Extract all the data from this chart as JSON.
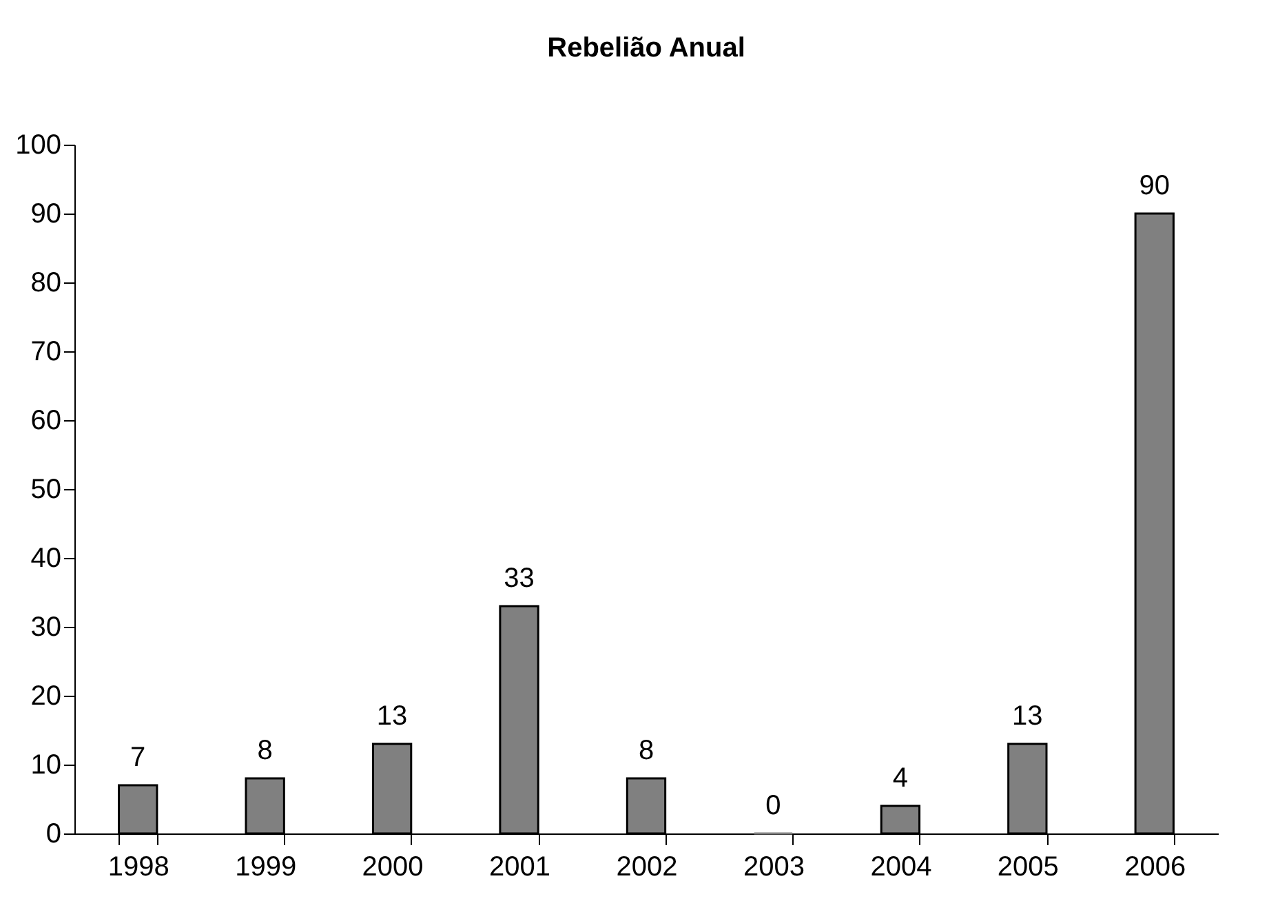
{
  "chart_data": {
    "type": "bar",
    "title": "Rebelião Anual",
    "categories": [
      "1998",
      "1999",
      "2000",
      "2001",
      "2002",
      "2003",
      "2004",
      "2005",
      "2006"
    ],
    "values": [
      7,
      8,
      13,
      33,
      8,
      0,
      4,
      13,
      90
    ],
    "color": "#808080",
    "ylim": [
      0,
      100
    ],
    "yticks": [
      0,
      10,
      20,
      30,
      40,
      50,
      60,
      70,
      80,
      90,
      100
    ],
    "grid": false,
    "data_labels": true
  }
}
